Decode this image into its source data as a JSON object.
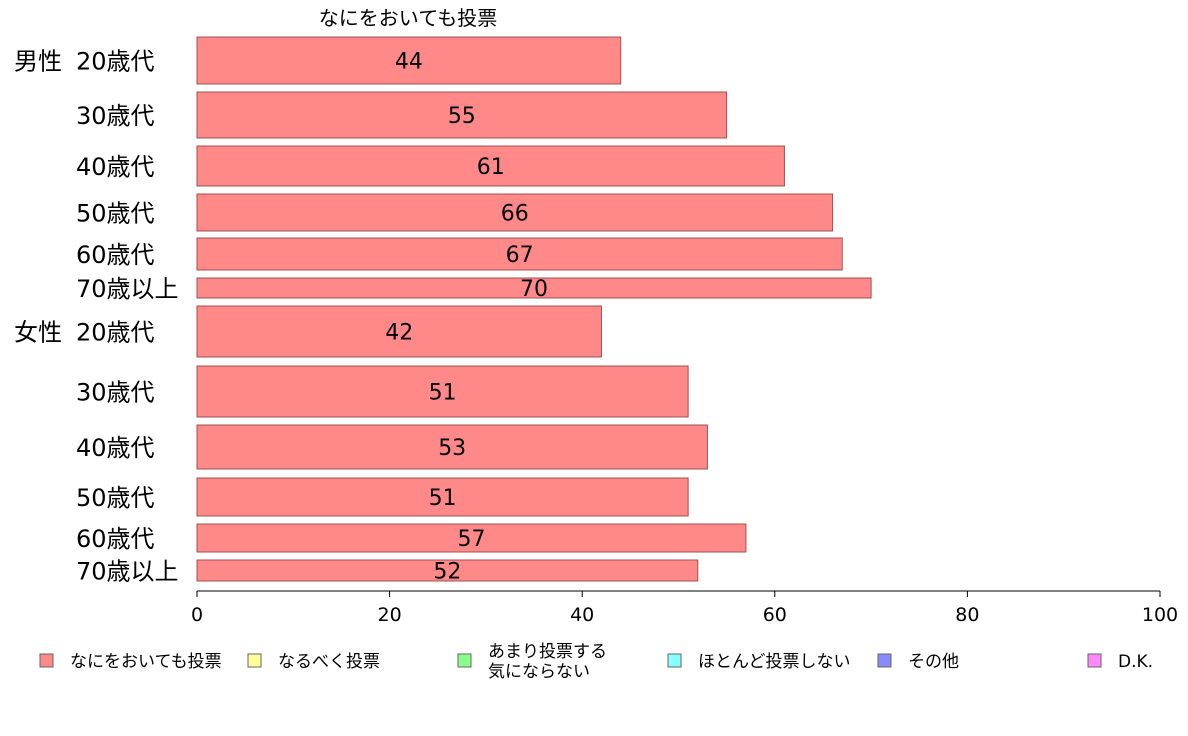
{
  "chart_data": {
    "type": "bar",
    "orientation": "horizontal",
    "title": "なにをおいても投票",
    "groups": [
      {
        "label": "男性",
        "categories": [
          "20歳代",
          "30歳代",
          "40歳代",
          "50歳代",
          "60歳代",
          "70歳以上"
        ]
      },
      {
        "label": "女性",
        "categories": [
          "20歳代",
          "30歳代",
          "40歳代",
          "50歳代",
          "60歳代",
          "70歳以上"
        ]
      }
    ],
    "series": [
      {
        "name": "なにをおいても投票",
        "color": "#ff8888",
        "values": [
          44,
          55,
          61,
          66,
          67,
          70,
          42,
          51,
          53,
          51,
          57,
          52
        ]
      }
    ],
    "x_axis": {
      "min": 0,
      "max": 100,
      "ticks": [
        0,
        20,
        40,
        60,
        80,
        100
      ]
    },
    "grid": false,
    "legend": {
      "position": "bottom",
      "items": [
        {
          "label": "なにをおいても投票",
          "color": "#ff8888"
        },
        {
          "label": "なるべく投票",
          "color": "#ffff99"
        },
        {
          "label": "あまり投票する\n気にならない",
          "color": "#88ff88"
        },
        {
          "label": "ほとんど投票しない",
          "color": "#88ffff"
        },
        {
          "label": "その他",
          "color": "#8888ff"
        },
        {
          "label": "D.K.",
          "color": "#ff88ff"
        }
      ]
    }
  }
}
